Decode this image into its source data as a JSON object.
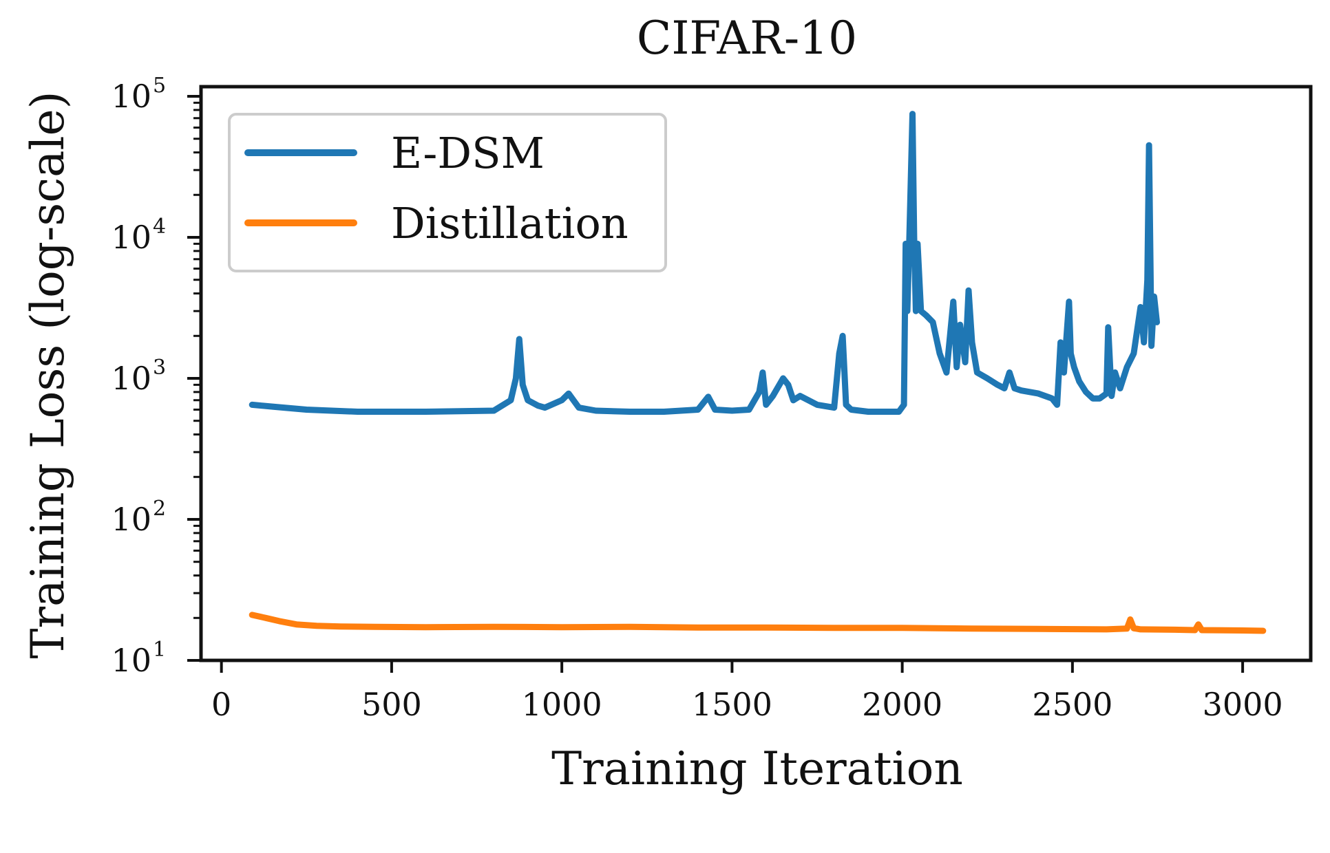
{
  "chart_data": {
    "type": "line",
    "title": "CIFAR-10",
    "xlabel": "Training Iteration",
    "ylabel": "Training Loss (log-scale)",
    "xlim": [
      -60,
      3200
    ],
    "ylim": [
      10,
      100000
    ],
    "yscale": "log",
    "grid": false,
    "legend_position": "top-left",
    "x_ticks": [
      0,
      500,
      1000,
      1500,
      2000,
      2500,
      3000
    ],
    "y_ticks": [
      {
        "base": "10",
        "exp": "1",
        "value": 10
      },
      {
        "base": "10",
        "exp": "2",
        "value": 100
      },
      {
        "base": "10",
        "exp": "3",
        "value": 1000
      },
      {
        "base": "10",
        "exp": "4",
        "value": 10000
      },
      {
        "base": "10",
        "exp": "5",
        "value": 100000
      }
    ],
    "series": [
      {
        "name": "E-DSM",
        "color": "#1f77b4",
        "x": [
          90,
          150,
          250,
          400,
          600,
          800,
          850,
          865,
          875,
          885,
          900,
          930,
          950,
          1000,
          1020,
          1050,
          1100,
          1200,
          1300,
          1400,
          1430,
          1450,
          1500,
          1550,
          1580,
          1590,
          1600,
          1620,
          1650,
          1665,
          1680,
          1700,
          1750,
          1800,
          1815,
          1825,
          1835,
          1850,
          1900,
          1950,
          1990,
          2005,
          2010,
          2015,
          2020,
          2030,
          2035,
          2040,
          2045,
          2055,
          2070,
          2090,
          2110,
          2130,
          2150,
          2160,
          2170,
          2185,
          2195,
          2205,
          2220,
          2250,
          2280,
          2300,
          2315,
          2330,
          2350,
          2400,
          2440,
          2455,
          2465,
          2475,
          2490,
          2495,
          2505,
          2520,
          2540,
          2560,
          2580,
          2600,
          2605,
          2615,
          2625,
          2640,
          2660,
          2680,
          2700,
          2710,
          2720,
          2725,
          2732,
          2740,
          2748
        ],
        "y": [
          650,
          630,
          600,
          580,
          580,
          590,
          700,
          1000,
          1900,
          900,
          700,
          640,
          620,
          700,
          780,
          620,
          590,
          580,
          580,
          600,
          740,
          600,
          590,
          600,
          800,
          1100,
          650,
          750,
          1000,
          900,
          700,
          750,
          650,
          620,
          1500,
          2000,
          650,
          600,
          580,
          580,
          580,
          650,
          9000,
          3000,
          8000,
          75000,
          10000,
          3000,
          9000,
          3000,
          2800,
          2500,
          1500,
          1100,
          3500,
          1200,
          2400,
          1300,
          4200,
          1800,
          1100,
          1000,
          900,
          850,
          1100,
          850,
          820,
          780,
          720,
          650,
          1800,
          1100,
          3500,
          1500,
          1200,
          950,
          800,
          720,
          720,
          780,
          2300,
          750,
          1100,
          850,
          1200,
          1500,
          3200,
          1800,
          5000,
          45000,
          1700,
          3800,
          2500
        ]
      },
      {
        "name": "Distillation",
        "color": "#ff7f0e",
        "x": [
          90,
          130,
          170,
          220,
          280,
          350,
          450,
          600,
          800,
          1000,
          1200,
          1400,
          1600,
          1800,
          2000,
          2200,
          2400,
          2600,
          2660,
          2670,
          2680,
          2700,
          2800,
          2860,
          2870,
          2880,
          3000,
          3060
        ],
        "y": [
          21,
          20,
          19,
          18,
          17.6,
          17.4,
          17.3,
          17.2,
          17.3,
          17.2,
          17.3,
          17.1,
          17.1,
          17.0,
          17.0,
          16.8,
          16.7,
          16.6,
          16.8,
          19.5,
          16.9,
          16.6,
          16.5,
          16.4,
          18.0,
          16.4,
          16.3,
          16.2
        ]
      }
    ]
  }
}
